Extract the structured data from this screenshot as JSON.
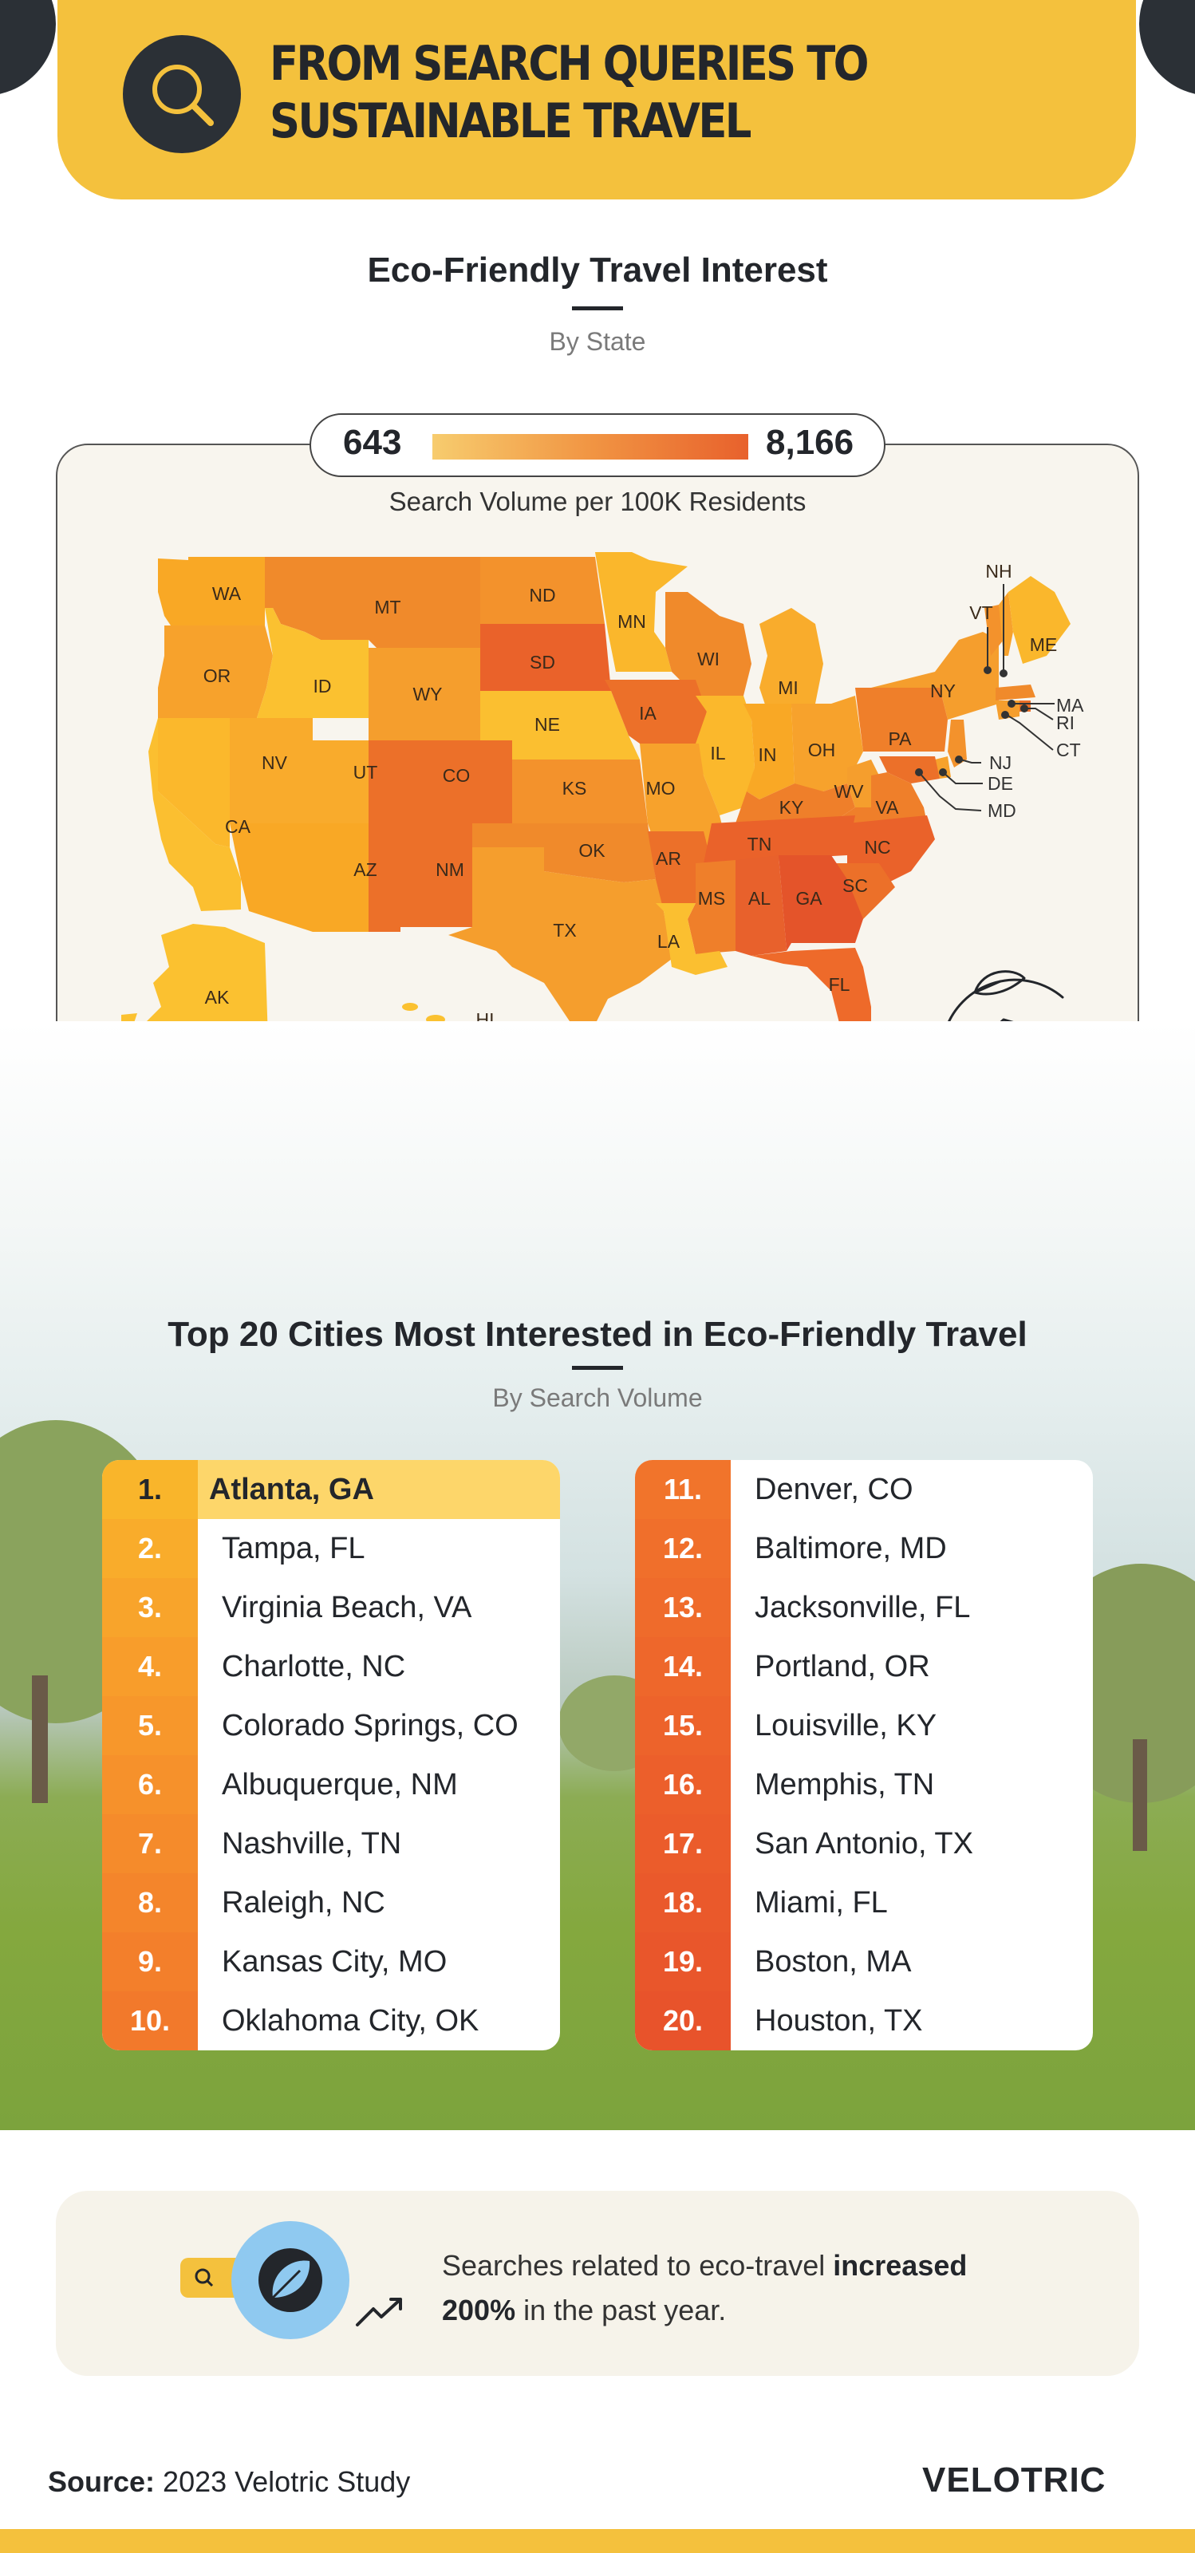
{
  "header": {
    "title_line1": "FROM SEARCH QUERIES TO",
    "title_line2": "SUSTAINABLE TRAVEL",
    "icon": "search-icon",
    "accent_color": "#f4c13d",
    "dark_color": "#2b3036"
  },
  "map_section": {
    "title": "Eco-Friendly Travel Interest",
    "subtitle": "By State",
    "legend": {
      "min": "643",
      "max": "8,166",
      "caption": "Search Volume per 100K Residents",
      "gradient_colors": [
        "#f7cc6e",
        "#f19543",
        "#e8612c"
      ]
    },
    "states": [
      "WA",
      "MT",
      "ND",
      "MN",
      "OR",
      "ID",
      "WY",
      "SD",
      "WI",
      "MI",
      "NY",
      "VT",
      "NH",
      "ME",
      "NV",
      "UT",
      "CO",
      "NE",
      "IA",
      "IL",
      "IN",
      "OH",
      "PA",
      "MA",
      "RI",
      "CT",
      "NJ",
      "DE",
      "MD",
      "CA",
      "KS",
      "MO",
      "KY",
      "WV",
      "VA",
      "AZ",
      "NM",
      "OK",
      "AR",
      "TN",
      "NC",
      "SC",
      "MS",
      "AL",
      "GA",
      "TX",
      "LA",
      "FL",
      "AK",
      "HI"
    ],
    "icon": "eco-travel-icon"
  },
  "cities_section": {
    "title": "Top 20 Cities Most Interested in Eco-Friendly Travel",
    "subtitle": "By Search Volume",
    "cities": [
      {
        "rank": "1.",
        "name": "Atlanta, GA"
      },
      {
        "rank": "2.",
        "name": "Tampa, FL"
      },
      {
        "rank": "3.",
        "name": "Virginia Beach, VA"
      },
      {
        "rank": "4.",
        "name": "Charlotte, NC"
      },
      {
        "rank": "5.",
        "name": "Colorado Springs, CO"
      },
      {
        "rank": "6.",
        "name": "Albuquerque, NM"
      },
      {
        "rank": "7.",
        "name": "Nashville, TN"
      },
      {
        "rank": "8.",
        "name": "Raleigh, NC"
      },
      {
        "rank": "9.",
        "name": "Kansas City, MO"
      },
      {
        "rank": "10.",
        "name": "Oklahoma City, OK"
      },
      {
        "rank": "11.",
        "name": "Denver, CO"
      },
      {
        "rank": "12.",
        "name": "Baltimore, MD"
      },
      {
        "rank": "13.",
        "name": "Jacksonville, FL"
      },
      {
        "rank": "14.",
        "name": "Portland, OR"
      },
      {
        "rank": "15.",
        "name": "Louisville, KY"
      },
      {
        "rank": "16.",
        "name": "Memphis, TN"
      },
      {
        "rank": "17.",
        "name": "San Antonio, TX"
      },
      {
        "rank": "18.",
        "name": "Miami, FL"
      },
      {
        "rank": "19.",
        "name": "Boston, MA"
      },
      {
        "rank": "20.",
        "name": "Houston, TX"
      }
    ]
  },
  "stat": {
    "text_before": "Searches related to eco-travel ",
    "bold1": "increased",
    "bold2": "200%",
    "text_after": " in the past year.",
    "icon": "leaf-search-icon"
  },
  "footer": {
    "source_label": "Source:",
    "source_value": " 2023 Velotric Study",
    "brand": "VELOTRIC"
  }
}
